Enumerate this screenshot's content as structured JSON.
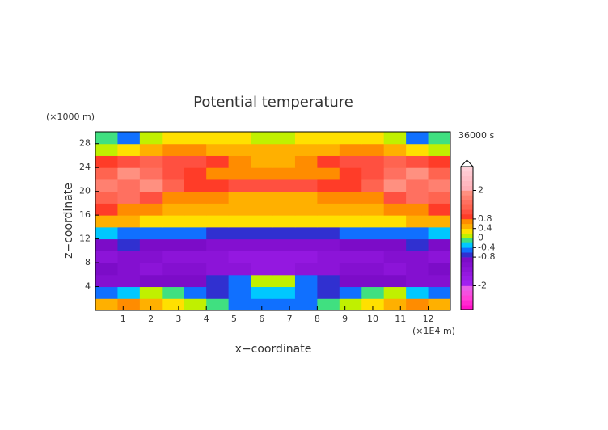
{
  "chart_data": {
    "type": "heatmap",
    "title": "Potential temperature",
    "x_label": "x−coordinate",
    "y_label": "z−coordinate",
    "x_unit": "(×1E4 m)",
    "y_unit": "(×1000 m)",
    "time_label": "36000 s",
    "xlim": [
      0,
      12.8
    ],
    "ylim": [
      0,
      30
    ],
    "xticks": [
      1,
      2,
      3,
      4,
      5,
      6,
      7,
      8,
      9,
      10,
      11,
      12
    ],
    "yticks": [
      4,
      8,
      12,
      16,
      20,
      24,
      28
    ],
    "x": [
      0,
      0.8,
      1.6,
      2.4,
      3.2,
      4,
      4.8,
      5.6,
      6.4,
      7.2,
      8,
      8.8,
      9.6,
      10.4,
      11.2,
      12,
      12.8
    ],
    "y": [
      0,
      2,
      4,
      6,
      8,
      10,
      12,
      14,
      16,
      18,
      20,
      22,
      24,
      26,
      28,
      30
    ],
    "values": [
      [
        0.5,
        0.6,
        0.4,
        0.2,
        0.1,
        -0.2,
        -0.5,
        -0.6,
        -0.6,
        -0.5,
        -0.2,
        0.1,
        0.2,
        0.4,
        0.6,
        0.5
      ],
      [
        -0.5,
        -0.3,
        0.1,
        -0.2,
        -0.5,
        -0.7,
        -0.6,
        -0.3,
        -0.3,
        -0.6,
        -0.7,
        -0.5,
        -0.2,
        0.1,
        -0.3,
        -0.5
      ],
      [
        -1.2,
        -1.2,
        -1,
        -0.9,
        -1,
        -0.8,
        -0.6,
        0.1,
        0.1,
        -0.6,
        -0.8,
        -1,
        -0.9,
        -1,
        -1.2,
        -1.2
      ],
      [
        -1,
        -1.2,
        -1.3,
        -1.2,
        -1.2,
        -1.3,
        -1.4,
        -1.6,
        -1.6,
        -1.4,
        -1.3,
        -1.2,
        -1.2,
        -1.3,
        -1.2,
        -1
      ],
      [
        -1.4,
        -1.2,
        -1.1,
        -1.3,
        -1.3,
        -1.4,
        -1.5,
        -1.5,
        -1.5,
        -1.5,
        -1.4,
        -1.3,
        -1.3,
        -1.1,
        -1.2,
        -1.4
      ],
      [
        -0.9,
        -0.8,
        -0.9,
        -1,
        -1,
        -1.1,
        -1.1,
        -1.1,
        -1.1,
        -1.1,
        -1.1,
        -1,
        -1,
        -0.9,
        -0.8,
        -0.9
      ],
      [
        -0.3,
        -0.5,
        -0.5,
        -0.6,
        -0.6,
        -0.7,
        -0.7,
        -0.7,
        -0.7,
        -0.7,
        -0.7,
        -0.6,
        -0.6,
        -0.5,
        -0.5,
        -0.3
      ],
      [
        0.4,
        0.4,
        0.3,
        0.3,
        0.3,
        0.2,
        0.2,
        0.2,
        0.2,
        0.2,
        0.2,
        0.3,
        0.3,
        0.3,
        0.4,
        0.4
      ],
      [
        0.9,
        0.6,
        0.7,
        0.5,
        0.5,
        0.4,
        0.4,
        0.4,
        0.4,
        0.4,
        0.4,
        0.5,
        0.5,
        0.7,
        0.6,
        0.9
      ],
      [
        1.2,
        1.4,
        1,
        0.7,
        0.6,
        0.6,
        0.5,
        0.5,
        0.5,
        0.5,
        0.6,
        0.6,
        0.7,
        1,
        1.4,
        1.2
      ],
      [
        1.6,
        1.5,
        1.8,
        1.2,
        0.9,
        0.9,
        1,
        1.1,
        1.1,
        1,
        0.9,
        0.9,
        1.2,
        1.8,
        1.5,
        1.6
      ],
      [
        1.3,
        1.8,
        1.4,
        1.1,
        0.8,
        0.7,
        0.7,
        0.6,
        0.6,
        0.7,
        0.7,
        0.8,
        1.1,
        1.4,
        1.8,
        1.3
      ],
      [
        0.8,
        1,
        1.3,
        1.1,
        1,
        0.8,
        0.6,
        0.5,
        0.5,
        0.6,
        0.8,
        1,
        1.1,
        1.3,
        1,
        0.8
      ],
      [
        0.1,
        0.3,
        0.5,
        0.7,
        0.6,
        0.5,
        0.4,
        0.4,
        0.4,
        0.4,
        0.5,
        0.6,
        0.7,
        0.5,
        0.3,
        0.1
      ],
      [
        -0.2,
        -0.5,
        0,
        0.3,
        0.3,
        0.2,
        0.2,
        0.1,
        0.1,
        0.2,
        0.2,
        0.3,
        0.3,
        0,
        -0.5,
        -0.2
      ]
    ],
    "colorbar": {
      "levels": [
        -3,
        -2.8,
        -2.6,
        -2.4,
        -2.2,
        -2,
        -1.8,
        -1.6,
        -1.4,
        -1.2,
        -1,
        -0.8,
        -0.6,
        -0.4,
        -0.2,
        0,
        0.2,
        0.4,
        0.6,
        0.8,
        1,
        1.2,
        1.4,
        1.6,
        1.8,
        2,
        2.2,
        2.4,
        2.6,
        2.8,
        3
      ],
      "colors": [
        "#ff10c8",
        "#ff28d0",
        "#ff40d8",
        "#f450e0",
        "#e85ce8",
        "#a020f0",
        "#9a1ce8",
        "#9418e0",
        "#8c14d8",
        "#8410d0",
        "#7c0cc8",
        "#3030d0",
        "#1070ff",
        "#00c8ff",
        "#40e080",
        "#c0f000",
        "#ffe000",
        "#ffb000",
        "#ff8c00",
        "#ff3c28",
        "#ff5040",
        "#ff6450",
        "#ff7060",
        "#ff8070",
        "#ff9080",
        "#ffb0b8",
        "#ffb8c0",
        "#ffc0c8",
        "#ffc8d0",
        "#ffd0d8"
      ],
      "ticks": [
        2,
        0.8,
        0.4,
        0,
        -0.4,
        -0.8,
        -2
      ]
    }
  }
}
